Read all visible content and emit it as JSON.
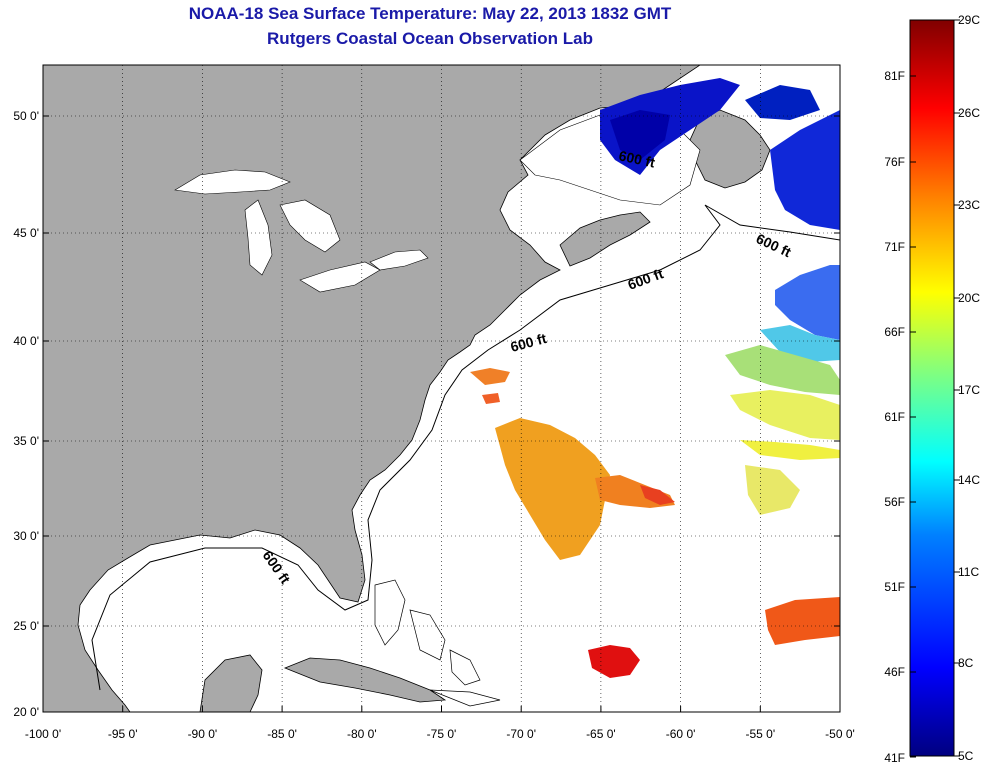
{
  "title": "NOAA-18 Sea Surface Temperature:  May 22, 2013 1832 GMT",
  "subtitle": "Rutgers Coastal Ocean Observation Lab",
  "map": {
    "lon_range": [
      -100,
      -50
    ],
    "lat_range": [
      20,
      52
    ],
    "lon_ticks": [
      "-100 0'",
      "-95 0'",
      "-90 0'",
      "-85 0'",
      "-80 0'",
      "-75 0'",
      "-70 0'",
      "-65 0'",
      "-60 0'",
      "-55 0'",
      "-50 0'"
    ],
    "lat_ticks": [
      "50 0'",
      "45 0'",
      "40 0'",
      "35 0'",
      "30 0'",
      "25 0'",
      "20 0'"
    ],
    "contour_label": "600 ft",
    "land_color": "#a9a9a9",
    "grid": "dotted"
  },
  "colorbar": {
    "celsius_labels": [
      "29C",
      "26C",
      "23C",
      "20C",
      "17C",
      "14C",
      "11C",
      "8C",
      "5C"
    ],
    "fahrenheit_labels": [
      "81F",
      "76F",
      "71F",
      "66F",
      "61F",
      "56F",
      "51F",
      "46F",
      "41F"
    ],
    "colors": [
      "#000080",
      "#0000ff",
      "#00bfff",
      "#00ffff",
      "#80ff80",
      "#ffff00",
      "#ff8000",
      "#ff0000",
      "#800000"
    ]
  }
}
